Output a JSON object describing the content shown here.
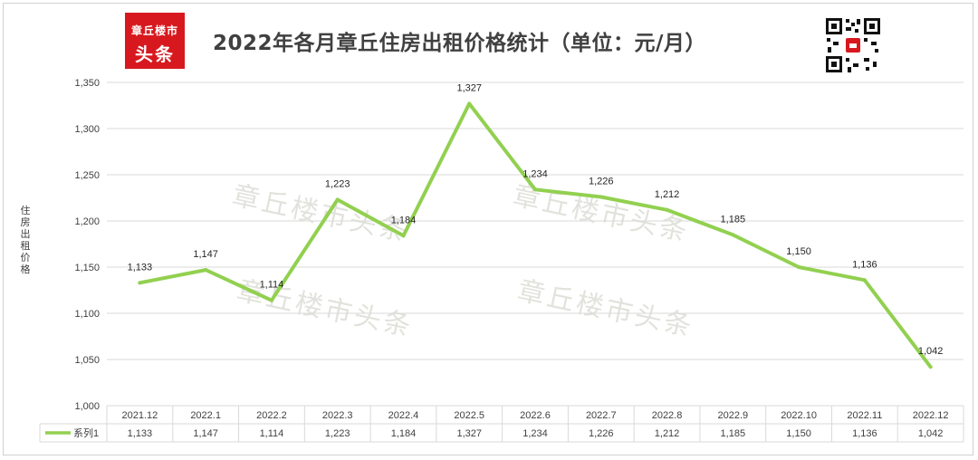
{
  "header": {
    "title": "2022年各月章丘住房出租价格统计（单位：元/月）",
    "logo_line1": "章丘楼市",
    "logo_line2": "头条",
    "qr_icon": "qr-code-icon"
  },
  "watermark": "章丘楼市头条",
  "colors": {
    "line": "#92d050",
    "grid": "#d9d9d9",
    "text": "#404040",
    "logo": "#d7191f"
  },
  "chart_data": {
    "type": "line",
    "title": "2022年各月章丘住房出租价格统计（单位：元/月）",
    "ylabel": "住房出租价格",
    "xlabel": "",
    "categories": [
      "2021.12",
      "2022.1",
      "2022.2",
      "2022.3",
      "2022.4",
      "2022.5",
      "2022.6",
      "2022.7",
      "2022.8",
      "2022.9",
      "2022.10",
      "2022.11",
      "2022.12"
    ],
    "series": [
      {
        "name": "系列1",
        "values": [
          1133,
          1147,
          1114,
          1223,
          1184,
          1327,
          1234,
          1226,
          1212,
          1185,
          1150,
          1136,
          1042
        ]
      }
    ],
    "data_labels": [
      "1,133",
      "1,147",
      "1,114",
      "1,223",
      "1,184",
      "1,327",
      "1,234",
      "1,226",
      "1,212",
      "1,185",
      "1,150",
      "1,136",
      "1,042"
    ],
    "ylim": [
      1000,
      1350
    ],
    "yticks": [
      1000,
      1050,
      1100,
      1150,
      1200,
      1250,
      1300,
      1350
    ],
    "ytick_labels": [
      "1,000",
      "1,050",
      "1,100",
      "1,150",
      "1,200",
      "1,250",
      "1,300",
      "1,350"
    ],
    "grid": true,
    "legend": "data-table"
  }
}
